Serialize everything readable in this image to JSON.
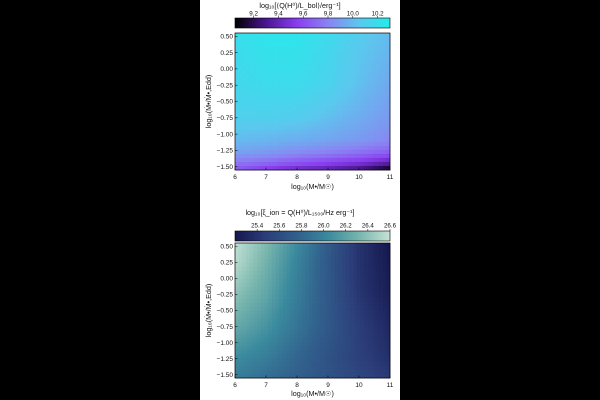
{
  "chart_data": [
    {
      "type": "heatmap",
      "colorbar": {
        "label": "log₁₀[⟨Q(H⁰)/L_bol⟩/erg⁻¹]",
        "range": [
          9.05,
          10.3
        ],
        "ticks": [
          9.2,
          9.4,
          9.6,
          9.8,
          10.0,
          10.2
        ],
        "tick_labels": [
          "9.2",
          "9.4",
          "9.6",
          "9.8",
          "10.0",
          "10.2"
        ],
        "colors": [
          "#000000",
          "#4a1590",
          "#8a3ef0",
          "#8a83f2",
          "#5bc8ee",
          "#22ecea"
        ]
      },
      "xlabel": "log₁₀(M•/M☉)",
      "ylabel": "log₁₀(Ṁ•/Ṁ•,Edd)",
      "xlim": [
        6,
        11
      ],
      "ylim": [
        -1.55,
        0.55
      ],
      "xticks": [
        6,
        7,
        8,
        9,
        10,
        11
      ],
      "xtick_labels": [
        "6",
        "7",
        "8",
        "9",
        "10",
        "11"
      ],
      "yticks": [
        0.5,
        0.25,
        0.0,
        -0.25,
        -0.5,
        -0.75,
        -1.0,
        -1.25,
        -1.5
      ],
      "ytick_labels": [
        "0.50",
        "0.25",
        "0.00",
        "−0.25",
        "−0.50",
        "−0.75",
        "−1.00",
        "−1.25",
        "−1.50"
      ],
      "grid": false,
      "value_grid": {
        "x": [
          6,
          7,
          8,
          9,
          10,
          11
        ],
        "y": [
          -1.55,
          -1.45,
          -1.3,
          -1.1,
          -0.75,
          -0.25,
          0.25,
          0.55
        ],
        "z": [
          [
            9.65,
            9.5,
            9.4,
            9.35,
            9.25,
            9.05
          ],
          [
            9.75,
            9.7,
            9.62,
            9.55,
            9.48,
            9.35
          ],
          [
            9.9,
            9.87,
            9.82,
            9.78,
            9.72,
            9.65
          ],
          [
            10.0,
            9.98,
            9.95,
            9.92,
            9.88,
            9.82
          ],
          [
            10.1,
            10.1,
            10.08,
            10.02,
            9.95,
            9.88
          ],
          [
            10.15,
            10.18,
            10.18,
            10.12,
            10.02,
            9.93
          ],
          [
            10.18,
            10.22,
            10.22,
            10.15,
            10.05,
            9.98
          ],
          [
            10.2,
            10.25,
            10.25,
            10.18,
            10.08,
            10.0
          ]
        ]
      }
    },
    {
      "type": "heatmap",
      "colorbar": {
        "label": "log₁₀[ξ_ion = Q(H⁰)/L₁₅₀₀/Hz erg⁻¹]",
        "range": [
          25.2,
          26.6
        ],
        "ticks": [
          25.4,
          25.6,
          25.8,
          26.0,
          26.2,
          26.4,
          26.6
        ],
        "tick_labels": [
          "25.4",
          "25.6",
          "25.8",
          "26.0",
          "26.2",
          "26.4",
          "26.6"
        ],
        "colors": [
          "#15174e",
          "#2c3e7a",
          "#315f8c",
          "#3a8a9e",
          "#77b5ad",
          "#c5e3d5"
        ]
      },
      "xlabel": "log₁₀(M•/M☉)",
      "ylabel": "log₁₀(Ṁ•/Ṁ•,Edd)",
      "xlim": [
        6,
        11
      ],
      "ylim": [
        -1.55,
        0.55
      ],
      "xticks": [
        6,
        7,
        8,
        9,
        10,
        11
      ],
      "xtick_labels": [
        "6",
        "7",
        "8",
        "9",
        "10",
        "11"
      ],
      "yticks": [
        0.5,
        0.25,
        0.0,
        -0.25,
        -0.5,
        -0.75,
        -1.0,
        -1.25,
        -1.5
      ],
      "ytick_labels": [
        "0.50",
        "0.25",
        "0.00",
        "−0.25",
        "−0.50",
        "−0.75",
        "−1.00",
        "−1.25",
        "−1.50"
      ],
      "grid": false,
      "value_grid": {
        "x": [
          6,
          7,
          8,
          9,
          10,
          11
        ],
        "y": [
          -1.55,
          -1.25,
          -0.75,
          -0.25,
          0.25,
          0.55
        ],
        "z": [
          [
            25.95,
            25.85,
            25.75,
            25.65,
            25.55,
            25.45
          ],
          [
            26.05,
            25.95,
            25.8,
            25.65,
            25.5,
            25.38
          ],
          [
            26.25,
            26.1,
            25.9,
            25.7,
            25.48,
            25.32
          ],
          [
            26.4,
            26.22,
            25.95,
            25.7,
            25.42,
            25.25
          ],
          [
            26.55,
            26.3,
            26.0,
            25.7,
            25.4,
            25.22
          ],
          [
            26.58,
            26.35,
            26.05,
            25.72,
            25.4,
            25.2
          ]
        ]
      }
    }
  ]
}
